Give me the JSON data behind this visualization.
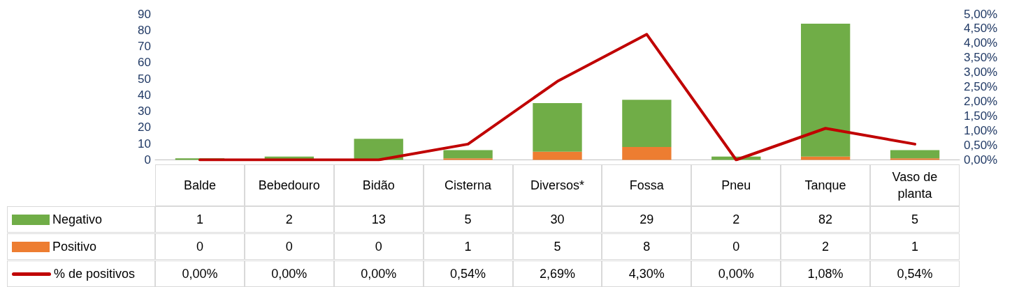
{
  "chart_data": {
    "type": "bar",
    "stacked": true,
    "legend": "bottom",
    "marker": "none",
    "line_style": "solid",
    "categories": [
      "Balde",
      "Bebedouro",
      "Bidão",
      "Cisterna",
      "Diversos*",
      "Fossa",
      "Pneu",
      "Tanque",
      "Vaso de planta"
    ],
    "series": [
      {
        "name": "Positivo",
        "color": "#ed7d31",
        "values": [
          0,
          0,
          0,
          1,
          5,
          8,
          0,
          2,
          1
        ],
        "value_labels": [
          "0",
          "0",
          "0",
          "1",
          "5",
          "8",
          "0",
          "2",
          "1"
        ]
      },
      {
        "name": "Negativo",
        "color": "#70ad47",
        "values": [
          1,
          2,
          13,
          5,
          30,
          29,
          2,
          82,
          5
        ],
        "value_labels": [
          "1",
          "2",
          "13",
          "5",
          "30",
          "29",
          "2",
          "82",
          "5"
        ]
      },
      {
        "name": "% de positivos",
        "type": "line",
        "axis": "y2",
        "color": "#c00000",
        "values": [
          0,
          0,
          0,
          0.54,
          2.69,
          4.3,
          0,
          1.08,
          0.54
        ],
        "value_labels": [
          "0,00%",
          "0,00%",
          "0,00%",
          "0,54%",
          "2,69%",
          "4,30%",
          "0,00%",
          "1,08%",
          "0,54%"
        ]
      }
    ],
    "ylim": [
      0,
      90
    ],
    "yticks": [
      0,
      10,
      20,
      30,
      40,
      50,
      60,
      70,
      80,
      90
    ],
    "y2lim": [
      0,
      5
    ],
    "y2ticks": [
      {
        "value": 0,
        "label": "0,00%"
      },
      {
        "value": 0.5,
        "label": "0,50%"
      },
      {
        "value": 1,
        "label": "1,00%"
      },
      {
        "value": 1.5,
        "label": "1,50%"
      },
      {
        "value": 2,
        "label": "2,00%"
      },
      {
        "value": 2.5,
        "label": "2,50%"
      },
      {
        "value": 3,
        "label": "3,00%"
      },
      {
        "value": 3.5,
        "label": "3,50%"
      },
      {
        "value": 4,
        "label": "4,00%"
      },
      {
        "value": 4.5,
        "label": "4,50%"
      },
      {
        "value": 5,
        "label": "5,00%"
      }
    ]
  }
}
